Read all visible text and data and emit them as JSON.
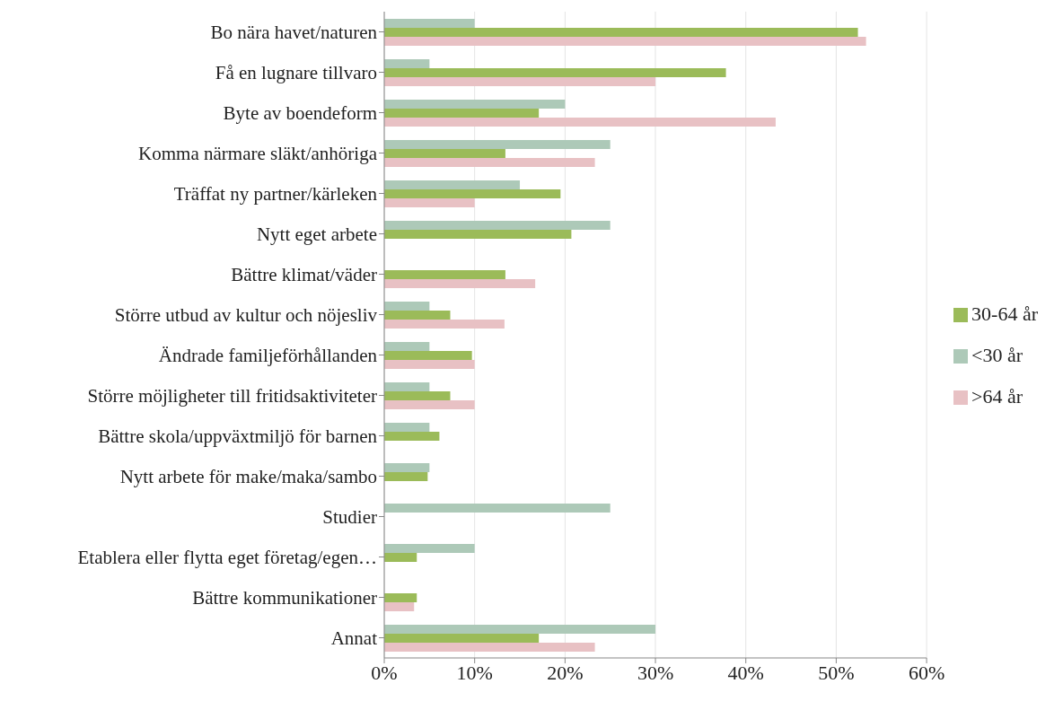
{
  "chart_data": {
    "type": "bar",
    "orientation": "horizontal",
    "categories": [
      "Bo nära havet/naturen",
      "Få en lugnare tillvaro",
      "Byte av boendeform",
      "Komma närmare släkt/anhöriga",
      "Träffat ny partner/kärleken",
      "Nytt eget arbete",
      "Bättre klimat/väder",
      "Större utbud av kultur och nöjesliv",
      "Ändrade familjeförhållanden",
      "Större möjligheter till fritidsaktiviteter",
      "Bättre skola/uppväxtmiljö för barnen",
      "Nytt arbete för make/maka/sambo",
      "Studier",
      "Etablera eller flytta eget företag/egen…",
      "Bättre kommunikationer",
      "Annat"
    ],
    "series": [
      {
        "name": "<30 år",
        "color": "#adc9b8",
        "values": [
          10,
          5,
          20,
          25,
          15,
          25,
          null,
          5,
          5,
          5,
          5,
          5,
          25,
          10,
          null,
          30
        ]
      },
      {
        "name": "30-64 år",
        "color": "#9bbb59",
        "values": [
          52.4,
          37.8,
          17.1,
          13.4,
          19.5,
          20.7,
          13.4,
          7.3,
          9.7,
          7.3,
          6.1,
          4.8,
          null,
          3.6,
          3.6,
          17.1
        ]
      },
      {
        "name": ">64 år",
        "color": "#e8c1c4",
        "values": [
          53.3,
          30,
          43.3,
          23.3,
          10,
          null,
          16.7,
          13.3,
          10,
          10,
          null,
          null,
          null,
          null,
          3.3,
          23.3
        ]
      }
    ],
    "xlim": [
      0,
      60
    ],
    "xticks": [
      {
        "value": 0,
        "label": "0%"
      },
      {
        "value": 10,
        "label": "10%"
      },
      {
        "value": 20,
        "label": "20%"
      },
      {
        "value": 30,
        "label": "30%"
      },
      {
        "value": 40,
        "label": "40%"
      },
      {
        "value": 50,
        "label": "50%"
      },
      {
        "value": 60,
        "label": "60%"
      }
    ],
    "grid": "x",
    "legend": "right"
  }
}
